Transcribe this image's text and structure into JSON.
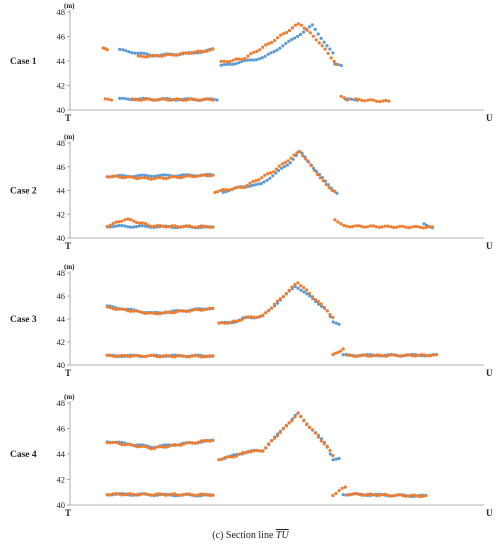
{
  "figure": {
    "caption_prefix": "(c) Section line",
    "caption_line": "TU"
  },
  "chart_data": [
    {
      "type": "scatter",
      "case_label": "Case 1",
      "unit_label": "(m)",
      "x_start_label": "T",
      "x_end_label": "U",
      "ylim": [
        40,
        48
      ],
      "yticks": [
        40,
        42,
        44,
        46,
        48
      ],
      "xlim": [
        0,
        1
      ],
      "grid": false,
      "series": [
        {
          "color": "#5b9bd5",
          "segments": [
            {
              "x0": 0.12,
              "x1": 0.345,
              "pts": [
                [
                  0.12,
                  44.9
                ],
                [
                  0.2,
                  44.45
                ],
                [
                  0.3,
                  44.65
                ],
                [
                  0.345,
                  44.95
                ]
              ]
            },
            {
              "x0": 0.365,
              "x1": 0.635,
              "pts": [
                [
                  0.365,
                  43.6
                ],
                [
                  0.41,
                  43.9
                ],
                [
                  0.47,
                  44.3
                ],
                [
                  0.535,
                  45.7
                ],
                [
                  0.585,
                  46.9
                ],
                [
                  0.635,
                  44.6
                ]
              ]
            },
            {
              "x0": 0.64,
              "x1": 0.655,
              "pts": [
                [
                  0.64,
                  43.7
                ],
                [
                  0.655,
                  43.6
                ]
              ]
            },
            {
              "x0": 0.12,
              "x1": 0.355,
              "pts": [
                [
                  0.12,
                  40.9
                ],
                [
                  0.355,
                  40.85
                ]
              ]
            },
            {
              "x0": 0.665,
              "x1": 0.695,
              "pts": [
                [
                  0.665,
                  40.85
                ],
                [
                  0.695,
                  40.85
                ]
              ]
            }
          ]
        },
        {
          "color": "#ed7d31",
          "segments": [
            {
              "x0": 0.08,
              "x1": 0.09,
              "pts": [
                [
                  0.08,
                  45.0
                ],
                [
                  0.09,
                  44.95
                ]
              ]
            },
            {
              "x0": 0.165,
              "x1": 0.345,
              "pts": [
                [
                  0.165,
                  44.35
                ],
                [
                  0.25,
                  44.5
                ],
                [
                  0.345,
                  44.9
                ]
              ]
            },
            {
              "x0": 0.365,
              "x1": 0.645,
              "pts": [
                [
                  0.365,
                  43.9
                ],
                [
                  0.42,
                  44.2
                ],
                [
                  0.48,
                  45.4
                ],
                [
                  0.555,
                  47.1
                ],
                [
                  0.6,
                  45.6
                ],
                [
                  0.645,
                  43.7
                ]
              ]
            },
            {
              "x0": 0.085,
              "x1": 0.1,
              "pts": [
                [
                  0.085,
                  40.85
                ],
                [
                  0.1,
                  40.85
                ]
              ]
            },
            {
              "x0": 0.15,
              "x1": 0.345,
              "pts": [
                [
                  0.15,
                  40.85
                ],
                [
                  0.345,
                  40.85
                ]
              ]
            },
            {
              "x0": 0.655,
              "x1": 0.67,
              "pts": [
                [
                  0.655,
                  41.05
                ],
                [
                  0.67,
                  40.85
                ]
              ]
            },
            {
              "x0": 0.69,
              "x1": 0.77,
              "pts": [
                [
                  0.69,
                  40.85
                ],
                [
                  0.77,
                  40.7
                ]
              ]
            }
          ]
        }
      ]
    },
    {
      "type": "scatter",
      "case_label": "Case 2",
      "unit_label": "(m)",
      "x_start_label": "T",
      "x_end_label": "U",
      "ylim": [
        40,
        48
      ],
      "yticks": [
        40,
        42,
        44,
        46,
        48
      ],
      "xlim": [
        0,
        1
      ],
      "grid": false,
      "series": [
        {
          "color": "#5b9bd5",
          "segments": [
            {
              "x0": 0.09,
              "x1": 0.345,
              "pts": [
                [
                  0.09,
                  45.2
                ],
                [
                  0.345,
                  45.3
                ]
              ]
            },
            {
              "x0": 0.37,
              "x1": 0.645,
              "pts": [
                [
                  0.37,
                  43.9
                ],
                [
                  0.42,
                  44.35
                ],
                [
                  0.46,
                  44.5
                ],
                [
                  0.53,
                  46.3
                ],
                [
                  0.555,
                  47.3
                ],
                [
                  0.62,
                  44.6
                ],
                [
                  0.645,
                  43.8
                ]
              ]
            },
            {
              "x0": 0.09,
              "x1": 0.345,
              "pts": [
                [
                  0.09,
                  41.0
                ],
                [
                  0.345,
                  40.9
                ]
              ]
            },
            {
              "x0": 0.855,
              "x1": 0.875,
              "pts": [
                [
                  0.855,
                  41.25
                ],
                [
                  0.875,
                  40.85
                ]
              ]
            }
          ]
        },
        {
          "color": "#ed7d31",
          "segments": [
            {
              "x0": 0.09,
              "x1": 0.345,
              "pts": [
                [
                  0.09,
                  45.2
                ],
                [
                  0.2,
                  45.0
                ],
                [
                  0.345,
                  45.3
                ]
              ]
            },
            {
              "x0": 0.35,
              "x1": 0.64,
              "pts": [
                [
                  0.35,
                  43.9
                ],
                [
                  0.42,
                  44.3
                ],
                [
                  0.49,
                  45.6
                ],
                [
                  0.555,
                  47.3
                ],
                [
                  0.62,
                  44.4
                ],
                [
                  0.64,
                  43.9
                ]
              ]
            },
            {
              "x0": 0.09,
              "x1": 0.345,
              "pts": [
                [
                  0.09,
                  41.0
                ],
                [
                  0.135,
                  41.6
                ],
                [
                  0.2,
                  41.0
                ],
                [
                  0.345,
                  40.95
                ]
              ]
            },
            {
              "x0": 0.64,
              "x1": 0.875,
              "pts": [
                [
                  0.64,
                  41.6
                ],
                [
                  0.66,
                  41.0
                ],
                [
                  0.875,
                  40.9
                ]
              ]
            }
          ]
        }
      ]
    },
    {
      "type": "scatter",
      "case_label": "Case 3",
      "unit_label": "(m)",
      "x_start_label": "T",
      "x_end_label": "U",
      "ylim": [
        40,
        48
      ],
      "yticks": [
        40,
        42,
        44,
        46,
        48
      ],
      "xlim": [
        0,
        1
      ],
      "grid": false,
      "series": [
        {
          "color": "#5b9bd5",
          "segments": [
            {
              "x0": 0.09,
              "x1": 0.345,
              "pts": [
                [
                  0.09,
                  45.1
                ],
                [
                  0.2,
                  44.5
                ],
                [
                  0.345,
                  44.95
                ]
              ]
            },
            {
              "x0": 0.36,
              "x1": 0.65,
              "pts": [
                [
                  0.36,
                  43.6
                ],
                [
                  0.405,
                  43.8
                ],
                [
                  0.42,
                  44.1
                ],
                [
                  0.465,
                  44.2
                ],
                [
                  0.545,
                  46.9
                ],
                [
                  0.62,
                  44.8
                ],
                [
                  0.635,
                  43.7
                ],
                [
                  0.65,
                  43.6
                ]
              ]
            },
            {
              "x0": 0.09,
              "x1": 0.345,
              "pts": [
                [
                  0.09,
                  40.8
                ],
                [
                  0.345,
                  40.8
                ]
              ]
            },
            {
              "x0": 0.66,
              "x1": 0.885,
              "pts": [
                [
                  0.66,
                  40.85
                ],
                [
                  0.885,
                  40.85
                ]
              ]
            }
          ]
        },
        {
          "color": "#ed7d31",
          "segments": [
            {
              "x0": 0.09,
              "x1": 0.345,
              "pts": [
                [
                  0.09,
                  45.0
                ],
                [
                  0.2,
                  44.45
                ],
                [
                  0.345,
                  44.9
                ]
              ]
            },
            {
              "x0": 0.36,
              "x1": 0.635,
              "pts": [
                [
                  0.36,
                  43.6
                ],
                [
                  0.405,
                  43.8
                ],
                [
                  0.42,
                  44.1
                ],
                [
                  0.465,
                  44.25
                ],
                [
                  0.55,
                  47.2
                ],
                [
                  0.62,
                  44.8
                ],
                [
                  0.635,
                  44.1
                ]
              ]
            },
            {
              "x0": 0.09,
              "x1": 0.345,
              "pts": [
                [
                  0.09,
                  40.8
                ],
                [
                  0.345,
                  40.75
                ]
              ]
            },
            {
              "x0": 0.635,
              "x1": 0.66,
              "pts": [
                [
                  0.635,
                  40.85
                ],
                [
                  0.66,
                  41.4
                ]
              ]
            },
            {
              "x0": 0.67,
              "x1": 0.885,
              "pts": [
                [
                  0.67,
                  40.8
                ],
                [
                  0.885,
                  40.85
                ]
              ]
            }
          ]
        }
      ]
    },
    {
      "type": "scatter",
      "case_label": "Case 4",
      "unit_label": "(m)",
      "x_start_label": "T",
      "x_end_label": "U",
      "ylim": [
        40,
        48
      ],
      "yticks": [
        40,
        42,
        44,
        46,
        48
      ],
      "xlim": [
        0,
        1
      ],
      "grid": false,
      "series": [
        {
          "color": "#5b9bd5",
          "segments": [
            {
              "x0": 0.09,
              "x1": 0.345,
              "pts": [
                [
                  0.09,
                  45.0
                ],
                [
                  0.2,
                  44.55
                ],
                [
                  0.345,
                  45.05
                ]
              ]
            },
            {
              "x0": 0.36,
              "x1": 0.65,
              "pts": [
                [
                  0.36,
                  43.6
                ],
                [
                  0.4,
                  43.9
                ],
                [
                  0.43,
                  44.2
                ],
                [
                  0.465,
                  44.25
                ],
                [
                  0.55,
                  47.2
                ],
                [
                  0.62,
                  44.7
                ],
                [
                  0.635,
                  43.6
                ],
                [
                  0.65,
                  43.6
                ]
              ]
            },
            {
              "x0": 0.09,
              "x1": 0.345,
              "pts": [
                [
                  0.09,
                  40.85
                ],
                [
                  0.345,
                  40.75
                ]
              ]
            },
            {
              "x0": 0.66,
              "x1": 0.86,
              "pts": [
                [
                  0.66,
                  40.85
                ],
                [
                  0.86,
                  40.7
                ]
              ]
            }
          ]
        },
        {
          "color": "#ed7d31",
          "segments": [
            {
              "x0": 0.09,
              "x1": 0.345,
              "pts": [
                [
                  0.09,
                  44.95
                ],
                [
                  0.2,
                  44.45
                ],
                [
                  0.345,
                  45.1
                ]
              ]
            },
            {
              "x0": 0.36,
              "x1": 0.635,
              "pts": [
                [
                  0.36,
                  43.6
                ],
                [
                  0.4,
                  43.85
                ],
                [
                  0.43,
                  44.2
                ],
                [
                  0.465,
                  44.25
                ],
                [
                  0.55,
                  47.15
                ],
                [
                  0.62,
                  44.6
                ],
                [
                  0.635,
                  43.9
                ]
              ]
            },
            {
              "x0": 0.09,
              "x1": 0.345,
              "pts": [
                [
                  0.09,
                  40.85
                ],
                [
                  0.345,
                  40.8
                ]
              ]
            },
            {
              "x0": 0.635,
              "x1": 0.665,
              "pts": [
                [
                  0.635,
                  40.8
                ],
                [
                  0.665,
                  41.4
                ]
              ]
            },
            {
              "x0": 0.67,
              "x1": 0.86,
              "pts": [
                [
                  0.67,
                  40.85
                ],
                [
                  0.86,
                  40.7
                ]
              ]
            }
          ]
        }
      ]
    }
  ]
}
